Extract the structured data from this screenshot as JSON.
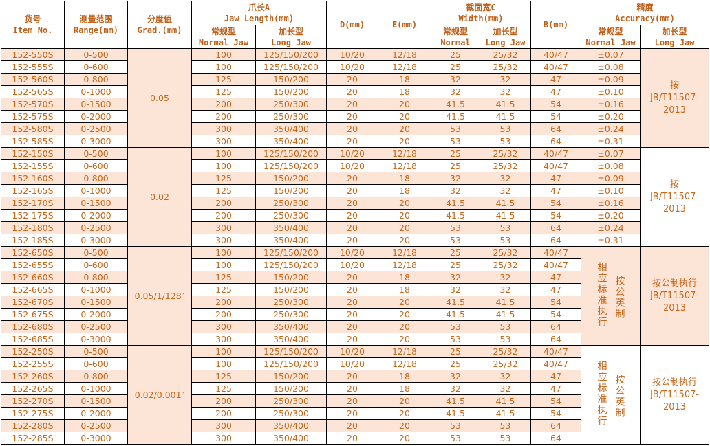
{
  "header": {
    "item": [
      "货号",
      "Item No."
    ],
    "range": [
      "测量范围",
      "Range(mm)"
    ],
    "grad": [
      "分度值",
      "Grad.(mm)"
    ],
    "jaw": [
      "爪长A",
      "Jaw Length(mm)"
    ],
    "jaw_normal": [
      "常规型",
      "Normal Jaw"
    ],
    "jaw_long": [
      "加长型",
      "Long Jaw"
    ],
    "d": "D(mm)",
    "e": "E(mm)",
    "width": [
      "截面宽C",
      "Width(mm)"
    ],
    "width_normal": [
      "常规型",
      "Normal"
    ],
    "width_long": [
      "加长型",
      "Long Jaw"
    ],
    "b": "B(mm)",
    "acc": [
      "精度",
      "Accuracy(mm)"
    ],
    "acc_normal": [
      "常规型",
      "Normal Jaw"
    ],
    "acc_long": [
      "加长型",
      "Long Jaw"
    ]
  },
  "colors": {
    "text": "#c8661a",
    "shade": "#fce4d6",
    "border": "#000000"
  },
  "groups": [
    {
      "grad": "0.05",
      "acc_long": "按 JB/T11507-2013",
      "items": [
        "152-550S",
        "152-555S",
        "152-560S",
        "152-565S",
        "152-570S",
        "152-575S",
        "152-580S",
        "152-585S"
      ],
      "acc_normal": [
        "±0.07",
        "±0.08",
        "±0.09",
        "±0.10",
        "±0.16",
        "±0.20",
        "±0.24",
        "±0.31"
      ]
    },
    {
      "grad": "0.02",
      "acc_long": "按 JB/T11507-2013",
      "items": [
        "152-150S",
        "152-155S",
        "152-160S",
        "152-165S",
        "152-170S",
        "152-175S",
        "152-180S",
        "152-185S"
      ],
      "acc_normal": [
        "±0.07",
        "±0.08",
        "±0.09",
        "±0.10",
        "±0.16",
        "±0.20",
        "±0.24",
        "±0.31"
      ]
    },
    {
      "grad": "0.05/1/128″",
      "acc_long": "按公制执行JB/T11507-2013",
      "acc_merged": [
        "相应标准执行",
        "按公英制"
      ],
      "items": [
        "152-650S",
        "152-655S",
        "152-660S",
        "152-665S",
        "152-670S",
        "152-675S",
        "152-680S",
        "152-685S"
      ]
    },
    {
      "grad": "0.02/0.001″",
      "acc_long": "按公制执行JB/T11507-2013",
      "acc_merged": [
        "相应标准执行",
        "按公英制"
      ],
      "items": [
        "152-250S",
        "152-255S",
        "152-260S",
        "152-265S",
        "152-270S",
        "152-275S",
        "152-280S",
        "152-285S"
      ]
    }
  ],
  "common": {
    "range": [
      "0-500",
      "0-600",
      "0-800",
      "0-1000",
      "0-1500",
      "0-2000",
      "0-2500",
      "0-3000"
    ],
    "jaw_normal": [
      "100",
      "100",
      "125",
      "125",
      "200",
      "200",
      "300",
      "300"
    ],
    "jaw_long": [
      "125/150/200",
      "125/150/200",
      "150/200",
      "150/200",
      "250/300",
      "250/300",
      "350/400",
      "350/400"
    ],
    "d": [
      "10/20",
      "10/20",
      "20",
      "20",
      "20",
      "20",
      "20",
      "20"
    ],
    "e": [
      "12/18",
      "12/18",
      "18",
      "18",
      "20",
      "20",
      "20",
      "20"
    ],
    "width_normal": [
      "25",
      "25",
      "32",
      "32",
      "41.5",
      "41.5",
      "53",
      "53"
    ],
    "width_long": [
      "25/32",
      "25/32",
      "32",
      "32",
      "41.5",
      "41.5",
      "53",
      "53"
    ],
    "b": [
      "40/47",
      "40/47",
      "47",
      "47",
      "54",
      "54",
      "64",
      "64"
    ]
  }
}
